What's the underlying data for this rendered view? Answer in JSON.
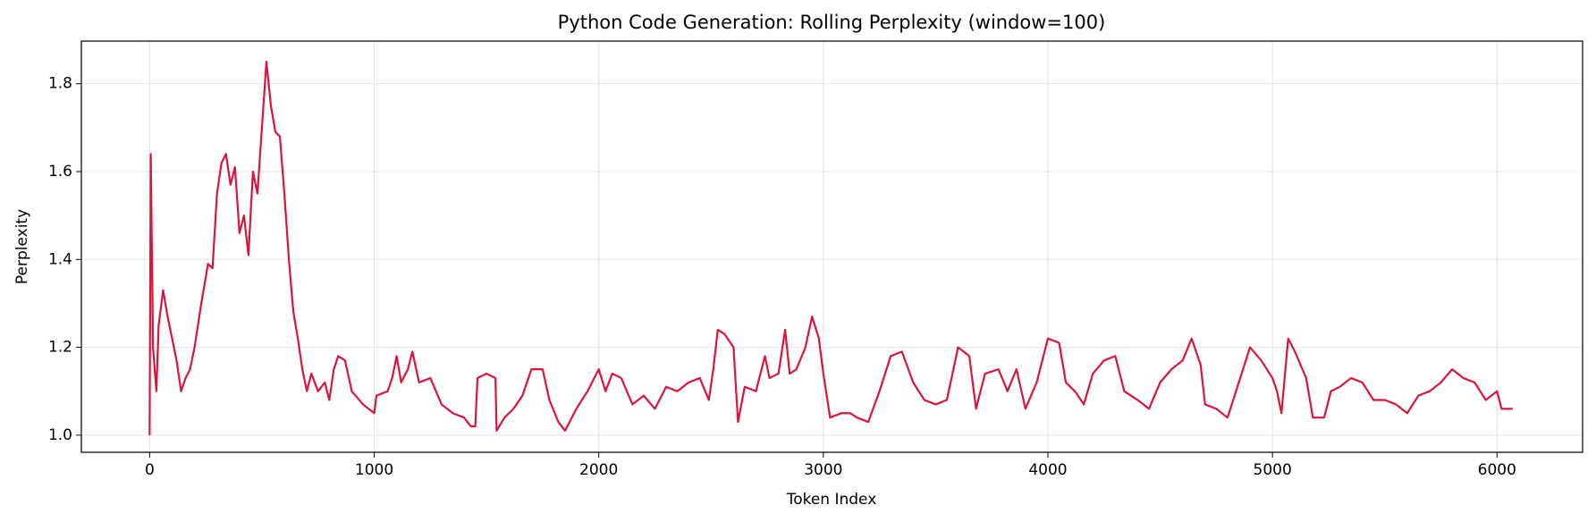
{
  "chart_data": {
    "type": "line",
    "title": "Python Code Generation: Rolling Perplexity (window=100)",
    "x_label": "Token Index",
    "y_label": "Perplexity",
    "x": [
      0,
      5,
      15,
      30,
      40,
      60,
      80,
      100,
      120,
      140,
      160,
      180,
      200,
      230,
      260,
      280,
      300,
      320,
      340,
      360,
      380,
      400,
      420,
      440,
      460,
      480,
      500,
      520,
      540,
      560,
      580,
      600,
      620,
      640,
      660,
      680,
      700,
      720,
      750,
      780,
      800,
      820,
      840,
      870,
      900,
      950,
      1000,
      1010,
      1060,
      1080,
      1100,
      1120,
      1150,
      1170,
      1200,
      1250,
      1300,
      1350,
      1400,
      1430,
      1450,
      1460,
      1500,
      1540,
      1545,
      1580,
      1620,
      1660,
      1700,
      1750,
      1780,
      1820,
      1850,
      1900,
      1950,
      2000,
      2030,
      2060,
      2100,
      2150,
      2200,
      2250,
      2300,
      2350,
      2400,
      2450,
      2490,
      2510,
      2530,
      2560,
      2600,
      2620,
      2650,
      2700,
      2740,
      2760,
      2800,
      2830,
      2850,
      2880,
      2920,
      2950,
      2980,
      3000,
      3030,
      3080,
      3120,
      3150,
      3200,
      3250,
      3300,
      3350,
      3400,
      3450,
      3500,
      3550,
      3600,
      3650,
      3680,
      3720,
      3780,
      3820,
      3860,
      3900,
      3950,
      4000,
      4050,
      4080,
      4120,
      4160,
      4200,
      4250,
      4300,
      4340,
      4400,
      4450,
      4500,
      4550,
      4600,
      4640,
      4680,
      4700,
      4750,
      4800,
      4850,
      4900,
      4950,
      5000,
      5020,
      5040,
      5070,
      5100,
      5150,
      5180,
      5230,
      5260,
      5300,
      5350,
      5400,
      5450,
      5500,
      5550,
      5600,
      5650,
      5700,
      5750,
      5800,
      5850,
      5900,
      5950,
      6000,
      6020,
      6070
    ],
    "series": [
      {
        "name": "Rolling Perplexity",
        "color": "#dc143c",
        "values": [
          1.0,
          1.64,
          1.2,
          1.1,
          1.25,
          1.33,
          1.27,
          1.22,
          1.17,
          1.1,
          1.13,
          1.15,
          1.2,
          1.3,
          1.39,
          1.38,
          1.55,
          1.62,
          1.64,
          1.57,
          1.61,
          1.46,
          1.5,
          1.41,
          1.6,
          1.55,
          1.7,
          1.85,
          1.75,
          1.69,
          1.68,
          1.55,
          1.4,
          1.28,
          1.22,
          1.15,
          1.1,
          1.14,
          1.1,
          1.12,
          1.08,
          1.15,
          1.18,
          1.17,
          1.1,
          1.07,
          1.05,
          1.09,
          1.1,
          1.13,
          1.18,
          1.12,
          1.15,
          1.19,
          1.12,
          1.13,
          1.07,
          1.05,
          1.04,
          1.02,
          1.02,
          1.13,
          1.14,
          1.13,
          1.01,
          1.04,
          1.06,
          1.09,
          1.15,
          1.15,
          1.08,
          1.03,
          1.01,
          1.06,
          1.1,
          1.15,
          1.1,
          1.14,
          1.13,
          1.07,
          1.09,
          1.06,
          1.11,
          1.1,
          1.12,
          1.13,
          1.08,
          1.15,
          1.24,
          1.23,
          1.2,
          1.03,
          1.11,
          1.1,
          1.18,
          1.13,
          1.14,
          1.24,
          1.14,
          1.15,
          1.2,
          1.27,
          1.22,
          1.14,
          1.04,
          1.05,
          1.05,
          1.04,
          1.03,
          1.1,
          1.18,
          1.19,
          1.12,
          1.08,
          1.07,
          1.08,
          1.2,
          1.18,
          1.06,
          1.14,
          1.15,
          1.1,
          1.15,
          1.06,
          1.12,
          1.22,
          1.21,
          1.12,
          1.1,
          1.07,
          1.14,
          1.17,
          1.18,
          1.1,
          1.08,
          1.06,
          1.12,
          1.15,
          1.17,
          1.22,
          1.16,
          1.07,
          1.06,
          1.04,
          1.12,
          1.2,
          1.17,
          1.13,
          1.1,
          1.05,
          1.22,
          1.19,
          1.13,
          1.04,
          1.04,
          1.1,
          1.11,
          1.13,
          1.12,
          1.08,
          1.08,
          1.07,
          1.05,
          1.09,
          1.1,
          1.12,
          1.15,
          1.13,
          1.12,
          1.08,
          1.1,
          1.06,
          1.06
        ]
      }
    ],
    "xlim": [
      -304,
      6381
    ],
    "ylim": [
      0.961,
      1.897
    ],
    "xticks": [
      0,
      1000,
      2000,
      3000,
      4000,
      5000,
      6000
    ],
    "yticks": [
      {
        "value": 1.0,
        "label": "1.0"
      },
      1.2,
      1.4,
      1.6,
      1.8
    ],
    "grid": true
  }
}
